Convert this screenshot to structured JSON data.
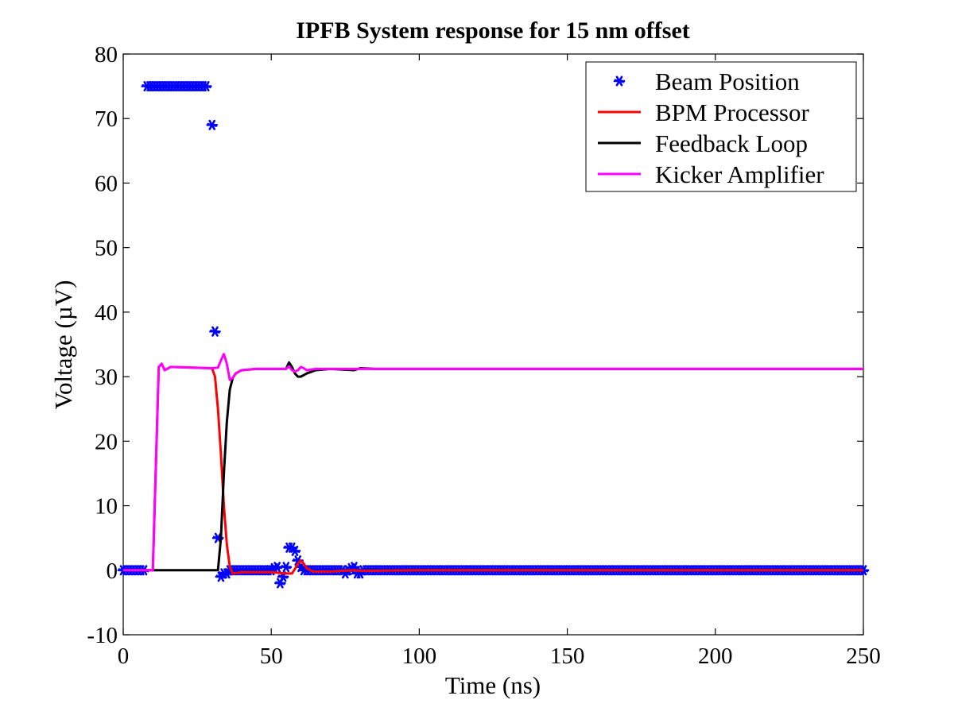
{
  "chart_data": {
    "type": "line",
    "title": "IPFB System response for 15 nm offset",
    "xlabel": "Time (ns)",
    "ylabel": "Voltage (µV)",
    "xlim": [
      0,
      250
    ],
    "ylim": [
      -10,
      80
    ],
    "x_ticks": [
      0,
      50,
      100,
      150,
      200,
      250
    ],
    "y_ticks": [
      -10,
      0,
      10,
      20,
      30,
      40,
      50,
      60,
      70,
      80
    ],
    "grid": false,
    "legend_position": "top-right",
    "series": [
      {
        "name": "Beam Position",
        "style": "markers",
        "marker": "asterisk",
        "color": "#0000ff",
        "points": [
          [
            0,
            0
          ],
          [
            1,
            0
          ],
          [
            2,
            0
          ],
          [
            3,
            0
          ],
          [
            4,
            0
          ],
          [
            5,
            0
          ],
          [
            6,
            0
          ],
          [
            7,
            0
          ],
          [
            8,
            75
          ],
          [
            9,
            75
          ],
          [
            10,
            75
          ],
          [
            11,
            75
          ],
          [
            12,
            75
          ],
          [
            13,
            75
          ],
          [
            14,
            75
          ],
          [
            15,
            75
          ],
          [
            16,
            75
          ],
          [
            17,
            75
          ],
          [
            18,
            75
          ],
          [
            19,
            75
          ],
          [
            20,
            75
          ],
          [
            21,
            75
          ],
          [
            22,
            75
          ],
          [
            23,
            75
          ],
          [
            24,
            75
          ],
          [
            25,
            75
          ],
          [
            26,
            75
          ],
          [
            27,
            75
          ],
          [
            28,
            75
          ],
          [
            30,
            69
          ],
          [
            31,
            37
          ],
          [
            32,
            5
          ],
          [
            33,
            -1
          ],
          [
            34,
            -0.5
          ],
          [
            35,
            -0.5
          ],
          [
            36,
            0
          ],
          [
            37,
            0
          ],
          [
            38,
            0
          ],
          [
            39,
            0
          ],
          [
            40,
            0
          ],
          [
            41,
            0
          ],
          [
            42,
            0
          ],
          [
            43,
            0
          ],
          [
            44,
            0
          ],
          [
            45,
            0
          ],
          [
            46,
            0
          ],
          [
            47,
            0
          ],
          [
            48,
            0
          ],
          [
            49,
            0
          ],
          [
            50,
            0
          ],
          [
            51,
            0.3
          ],
          [
            52,
            0.5
          ],
          [
            53,
            -2
          ],
          [
            54,
            -1
          ],
          [
            55,
            0.5
          ],
          [
            56,
            3.5
          ],
          [
            57,
            3.5
          ],
          [
            58,
            3
          ],
          [
            59,
            1.5
          ],
          [
            60,
            0.5
          ],
          [
            61,
            0
          ],
          [
            62,
            0
          ],
          [
            63,
            0
          ],
          [
            64,
            0
          ],
          [
            65,
            0
          ],
          [
            66,
            0
          ],
          [
            67,
            0
          ],
          [
            68,
            0
          ],
          [
            69,
            0
          ],
          [
            70,
            0
          ],
          [
            71,
            0
          ],
          [
            72,
            0
          ],
          [
            73,
            0
          ],
          [
            74,
            0
          ],
          [
            75,
            -0.5
          ],
          [
            76,
            0
          ],
          [
            77,
            0.3
          ],
          [
            78,
            0.5
          ],
          [
            79,
            -0.5
          ],
          [
            80,
            -0.5
          ],
          [
            81,
            0
          ],
          [
            82,
            0
          ],
          [
            83,
            0
          ],
          [
            84,
            0
          ],
          [
            85,
            0
          ],
          [
            86,
            0
          ],
          [
            87,
            0
          ],
          [
            88,
            0
          ],
          [
            89,
            0
          ],
          [
            90,
            0
          ],
          [
            91,
            0
          ],
          [
            92,
            0
          ],
          [
            93,
            0
          ],
          [
            94,
            0
          ],
          [
            95,
            0
          ],
          [
            96,
            0
          ],
          [
            97,
            0
          ],
          [
            98,
            0
          ],
          [
            99,
            0
          ],
          [
            100,
            0
          ],
          [
            101,
            0
          ],
          [
            102,
            0
          ],
          [
            103,
            0
          ],
          [
            104,
            0
          ],
          [
            105,
            0
          ],
          [
            106,
            0
          ],
          [
            107,
            0
          ],
          [
            108,
            0
          ],
          [
            109,
            0
          ],
          [
            110,
            0
          ],
          [
            111,
            0
          ],
          [
            112,
            0
          ],
          [
            113,
            0
          ],
          [
            114,
            0
          ],
          [
            115,
            0
          ],
          [
            116,
            0
          ],
          [
            117,
            0
          ],
          [
            118,
            0
          ],
          [
            119,
            0
          ],
          [
            120,
            0
          ],
          [
            121,
            0
          ],
          [
            122,
            0
          ],
          [
            123,
            0
          ],
          [
            124,
            0
          ],
          [
            125,
            0
          ],
          [
            126,
            0
          ],
          [
            127,
            0
          ],
          [
            128,
            0
          ],
          [
            129,
            0
          ],
          [
            130,
            0
          ],
          [
            131,
            0
          ],
          [
            132,
            0
          ],
          [
            133,
            0
          ],
          [
            134,
            0
          ],
          [
            135,
            0
          ],
          [
            136,
            0
          ],
          [
            137,
            0
          ],
          [
            138,
            0
          ],
          [
            139,
            0
          ],
          [
            140,
            0
          ],
          [
            141,
            0
          ],
          [
            142,
            0
          ],
          [
            143,
            0
          ],
          [
            144,
            0
          ],
          [
            145,
            0
          ],
          [
            146,
            0
          ],
          [
            147,
            0
          ],
          [
            148,
            0
          ],
          [
            149,
            0
          ],
          [
            150,
            0
          ],
          [
            151,
            0
          ],
          [
            152,
            0
          ],
          [
            153,
            0
          ],
          [
            154,
            0
          ],
          [
            155,
            0
          ],
          [
            156,
            0
          ],
          [
            157,
            0
          ],
          [
            158,
            0
          ],
          [
            159,
            0
          ],
          [
            160,
            0
          ],
          [
            161,
            0
          ],
          [
            162,
            0
          ],
          [
            163,
            0
          ],
          [
            164,
            0
          ],
          [
            165,
            0
          ],
          [
            166,
            0
          ],
          [
            167,
            0
          ],
          [
            168,
            0
          ],
          [
            169,
            0
          ],
          [
            170,
            0
          ],
          [
            171,
            0
          ],
          [
            172,
            0
          ],
          [
            173,
            0
          ],
          [
            174,
            0
          ],
          [
            175,
            0
          ],
          [
            176,
            0
          ],
          [
            177,
            0
          ],
          [
            178,
            0
          ],
          [
            179,
            0
          ],
          [
            180,
            0
          ],
          [
            181,
            0
          ],
          [
            182,
            0
          ],
          [
            183,
            0
          ],
          [
            184,
            0
          ],
          [
            185,
            0
          ],
          [
            186,
            0
          ],
          [
            187,
            0
          ],
          [
            188,
            0
          ],
          [
            189,
            0
          ],
          [
            190,
            0
          ],
          [
            191,
            0
          ],
          [
            192,
            0
          ],
          [
            193,
            0
          ],
          [
            194,
            0
          ],
          [
            195,
            0
          ],
          [
            196,
            0
          ],
          [
            197,
            0
          ],
          [
            198,
            0
          ],
          [
            199,
            0
          ],
          [
            200,
            0
          ],
          [
            201,
            0
          ],
          [
            202,
            0
          ],
          [
            203,
            0
          ],
          [
            204,
            0
          ],
          [
            205,
            0
          ],
          [
            206,
            0
          ],
          [
            207,
            0
          ],
          [
            208,
            0
          ],
          [
            209,
            0
          ],
          [
            210,
            0
          ],
          [
            211,
            0
          ],
          [
            212,
            0
          ],
          [
            213,
            0
          ],
          [
            214,
            0
          ],
          [
            215,
            0
          ],
          [
            216,
            0
          ],
          [
            217,
            0
          ],
          [
            218,
            0
          ],
          [
            219,
            0
          ],
          [
            220,
            0
          ],
          [
            221,
            0
          ],
          [
            222,
            0
          ],
          [
            223,
            0
          ],
          [
            224,
            0
          ],
          [
            225,
            0
          ],
          [
            226,
            0
          ],
          [
            227,
            0
          ],
          [
            228,
            0
          ],
          [
            229,
            0
          ],
          [
            230,
            0
          ],
          [
            231,
            0
          ],
          [
            232,
            0
          ],
          [
            233,
            0
          ],
          [
            234,
            0
          ],
          [
            235,
            0
          ],
          [
            236,
            0
          ],
          [
            237,
            0
          ],
          [
            238,
            0
          ],
          [
            239,
            0
          ],
          [
            240,
            0
          ],
          [
            241,
            0
          ],
          [
            242,
            0
          ],
          [
            243,
            0
          ],
          [
            244,
            0
          ],
          [
            245,
            0
          ],
          [
            246,
            0
          ],
          [
            247,
            0
          ],
          [
            248,
            0
          ],
          [
            249,
            0
          ],
          [
            250,
            0
          ]
        ]
      },
      {
        "name": "BPM Processor",
        "style": "line",
        "color": "#ff0000",
        "points": [
          [
            0,
            0
          ],
          [
            10,
            0
          ],
          [
            12,
            31.5
          ],
          [
            13,
            32
          ],
          [
            14,
            31
          ],
          [
            16,
            31.5
          ],
          [
            30,
            31.3
          ],
          [
            31,
            30
          ],
          [
            32,
            25
          ],
          [
            33,
            18
          ],
          [
            34,
            10
          ],
          [
            35,
            4
          ],
          [
            36,
            0.5
          ],
          [
            37,
            -0.5
          ],
          [
            40,
            -0.3
          ],
          [
            50,
            -0.3
          ],
          [
            55,
            -0.5
          ],
          [
            57,
            -0.5
          ],
          [
            58,
            0.2
          ],
          [
            59,
            1
          ],
          [
            60,
            1.5
          ],
          [
            61,
            1
          ],
          [
            62,
            0.3
          ],
          [
            64,
            -0.2
          ],
          [
            70,
            -0.2
          ],
          [
            78,
            0
          ],
          [
            80,
            -0.1
          ],
          [
            100,
            0
          ],
          [
            250,
            0
          ]
        ]
      },
      {
        "name": "Feedback Loop",
        "style": "line",
        "color": "#000000",
        "points": [
          [
            0,
            0
          ],
          [
            32,
            0
          ],
          [
            33,
            5
          ],
          [
            34,
            15
          ],
          [
            35,
            23
          ],
          [
            36,
            28
          ],
          [
            37,
            29.8
          ],
          [
            38,
            30.5
          ],
          [
            40,
            31
          ],
          [
            45,
            31.2
          ],
          [
            55,
            31.2
          ],
          [
            56,
            32.2
          ],
          [
            57,
            31.5
          ],
          [
            58,
            30.5
          ],
          [
            59,
            30
          ],
          [
            60,
            30
          ],
          [
            62,
            30.5
          ],
          [
            65,
            31
          ],
          [
            70,
            31.2
          ],
          [
            78,
            31
          ],
          [
            80,
            31.3
          ],
          [
            85,
            31.2
          ],
          [
            250,
            31.2
          ]
        ]
      },
      {
        "name": "Kicker Amplifier",
        "style": "line",
        "color": "#ff00ff",
        "points": [
          [
            0,
            0
          ],
          [
            10,
            0
          ],
          [
            12,
            31.5
          ],
          [
            13,
            32
          ],
          [
            14,
            31
          ],
          [
            16,
            31.5
          ],
          [
            30,
            31.3
          ],
          [
            32,
            31.4
          ],
          [
            33,
            32.5
          ],
          [
            34,
            33.5
          ],
          [
            35,
            32
          ],
          [
            36,
            29.5
          ],
          [
            37,
            29.8
          ],
          [
            38,
            30.5
          ],
          [
            40,
            31
          ],
          [
            45,
            31.2
          ],
          [
            55,
            31.2
          ],
          [
            56,
            31.6
          ],
          [
            57,
            31
          ],
          [
            58,
            30.8
          ],
          [
            59,
            31
          ],
          [
            60,
            31.5
          ],
          [
            61,
            31.3
          ],
          [
            62,
            31
          ],
          [
            65,
            31.2
          ],
          [
            250,
            31.2
          ]
        ]
      }
    ]
  }
}
